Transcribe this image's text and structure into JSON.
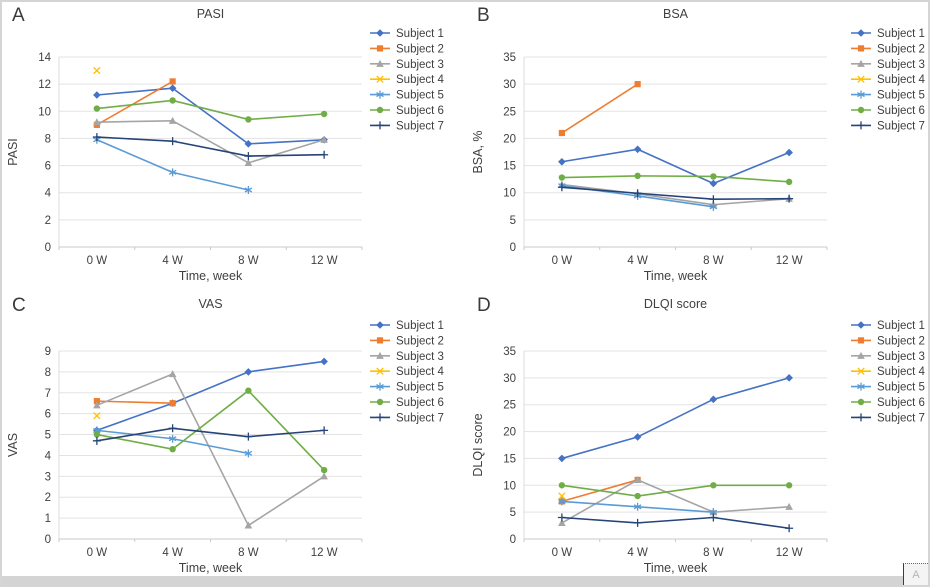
{
  "figure": {
    "panel_letters": [
      "A",
      "B",
      "C",
      "D"
    ],
    "x_axis_title": "Time, week",
    "corner_artifact_glyph": "A",
    "colors": {
      "subject1": "#4472C4",
      "subject2": "#ED7D31",
      "subject3": "#A5A5A5",
      "subject4": "#FFC000",
      "subject5": "#5B9BD5",
      "subject6": "#70AD47",
      "subject7": "#264478",
      "gridline": "#e3e3e3",
      "axis_line": "#c9c9c9"
    }
  },
  "chart_data": [
    {
      "panel_label": "A",
      "type": "line",
      "title": "PASI",
      "xlabel": "Time, week",
      "ylabel": "PASI",
      "categories": [
        "0 W",
        "4 W",
        "8 W",
        "12 W"
      ],
      "ylim": [
        0,
        14
      ],
      "ytick_step": 2,
      "yticks": [
        0,
        2,
        4,
        6,
        8,
        10,
        12,
        14
      ],
      "grid": true,
      "legend_position": "right",
      "series": [
        {
          "name": "Subject 1",
          "color": "#4472C4",
          "marker": "diamond",
          "values": [
            11.2,
            11.7,
            7.6,
            7.9
          ]
        },
        {
          "name": "Subject 2",
          "color": "#ED7D31",
          "marker": "square",
          "values": [
            9.0,
            12.2,
            null,
            null
          ]
        },
        {
          "name": "Subject 3",
          "color": "#A5A5A5",
          "marker": "triangle",
          "values": [
            9.2,
            9.3,
            6.2,
            7.9
          ]
        },
        {
          "name": "Subject 4",
          "color": "#FFC000",
          "marker": "x",
          "values": [
            13.0,
            null,
            null,
            null
          ]
        },
        {
          "name": "Subject 5",
          "color": "#5B9BD5",
          "marker": "asterisk",
          "values": [
            7.9,
            5.5,
            4.2,
            null
          ]
        },
        {
          "name": "Subject 6",
          "color": "#70AD47",
          "marker": "circle",
          "values": [
            10.2,
            10.8,
            9.4,
            9.8
          ]
        },
        {
          "name": "Subject 7",
          "color": "#264478",
          "marker": "plus",
          "values": [
            8.1,
            7.8,
            6.7,
            6.8
          ]
        }
      ]
    },
    {
      "panel_label": "B",
      "type": "line",
      "title": "BSA",
      "xlabel": "Time, week",
      "ylabel": "BSA, %",
      "categories": [
        "0 W",
        "4 W",
        "8 W",
        "12 W"
      ],
      "ylim": [
        0,
        35
      ],
      "ytick_step": 5,
      "yticks": [
        0,
        5,
        10,
        15,
        20,
        25,
        30,
        35
      ],
      "grid": true,
      "legend_position": "right",
      "series": [
        {
          "name": "Subject 1",
          "color": "#4472C4",
          "marker": "diamond",
          "values": [
            15.7,
            18,
            11.7,
            17.4
          ]
        },
        {
          "name": "Subject 2",
          "color": "#ED7D31",
          "marker": "square",
          "values": [
            21,
            30,
            null,
            null
          ]
        },
        {
          "name": "Subject 3",
          "color": "#A5A5A5",
          "marker": "triangle",
          "values": [
            11.5,
            9.8,
            7.8,
            8.9
          ]
        },
        {
          "name": "Subject 4",
          "color": "#FFC000",
          "marker": "x",
          "values": [
            null,
            null,
            null,
            null
          ]
        },
        {
          "name": "Subject 5",
          "color": "#5B9BD5",
          "marker": "asterisk",
          "values": [
            11.3,
            9.4,
            7.4,
            null
          ]
        },
        {
          "name": "Subject 6",
          "color": "#70AD47",
          "marker": "circle",
          "values": [
            12.8,
            13.1,
            13.0,
            12.0
          ]
        },
        {
          "name": "Subject 7",
          "color": "#264478",
          "marker": "plus",
          "values": [
            11.0,
            9.9,
            8.8,
            8.9
          ]
        }
      ]
    },
    {
      "panel_label": "C",
      "type": "line",
      "title": "VAS",
      "xlabel": "Time, week",
      "ylabel": "VAS",
      "categories": [
        "0 W",
        "4 W",
        "8 W",
        "12 W"
      ],
      "ylim": [
        0,
        9
      ],
      "ytick_step": 1,
      "yticks": [
        0,
        1,
        2,
        3,
        4,
        5,
        6,
        7,
        8,
        9
      ],
      "grid": true,
      "legend_position": "right",
      "series": [
        {
          "name": "Subject 1",
          "color": "#4472C4",
          "marker": "diamond",
          "values": [
            5.2,
            6.5,
            8.0,
            8.5
          ]
        },
        {
          "name": "Subject 2",
          "color": "#ED7D31",
          "marker": "square",
          "values": [
            6.6,
            6.5,
            null,
            null
          ]
        },
        {
          "name": "Subject 3",
          "color": "#A5A5A5",
          "marker": "triangle",
          "values": [
            6.4,
            7.9,
            0.65,
            3.0
          ]
        },
        {
          "name": "Subject 4",
          "color": "#FFC000",
          "marker": "x",
          "values": [
            5.9,
            null,
            null,
            null
          ]
        },
        {
          "name": "Subject 5",
          "color": "#5B9BD5",
          "marker": "asterisk",
          "values": [
            5.2,
            4.8,
            4.1,
            null
          ]
        },
        {
          "name": "Subject 6",
          "color": "#70AD47",
          "marker": "circle",
          "values": [
            5.0,
            4.3,
            7.1,
            3.3
          ]
        },
        {
          "name": "Subject 7",
          "color": "#264478",
          "marker": "plus",
          "values": [
            4.7,
            5.3,
            4.9,
            5.2
          ]
        }
      ]
    },
    {
      "panel_label": "D",
      "type": "line",
      "title": "DLQI score",
      "xlabel": "Time, week",
      "ylabel": "DLQI score",
      "categories": [
        "0 W",
        "4 W",
        "8 W",
        "12 W"
      ],
      "ylim": [
        0,
        35
      ],
      "ytick_step": 5,
      "yticks": [
        0,
        5,
        10,
        15,
        20,
        25,
        30,
        35
      ],
      "grid": true,
      "legend_position": "right",
      "series": [
        {
          "name": "Subject 1",
          "color": "#4472C4",
          "marker": "diamond",
          "values": [
            15,
            19,
            26,
            30
          ]
        },
        {
          "name": "Subject 2",
          "color": "#ED7D31",
          "marker": "square",
          "values": [
            7,
            11,
            null,
            null
          ]
        },
        {
          "name": "Subject 3",
          "color": "#A5A5A5",
          "marker": "triangle",
          "values": [
            3,
            11,
            5,
            6
          ]
        },
        {
          "name": "Subject 4",
          "color": "#FFC000",
          "marker": "x",
          "values": [
            8,
            null,
            null,
            null
          ]
        },
        {
          "name": "Subject 5",
          "color": "#5B9BD5",
          "marker": "asterisk",
          "values": [
            7,
            6,
            5,
            null
          ]
        },
        {
          "name": "Subject 6",
          "color": "#70AD47",
          "marker": "circle",
          "values": [
            10,
            8,
            10,
            10
          ]
        },
        {
          "name": "Subject 7",
          "color": "#264478",
          "marker": "plus",
          "values": [
            4,
            3,
            4,
            2
          ]
        }
      ]
    }
  ]
}
